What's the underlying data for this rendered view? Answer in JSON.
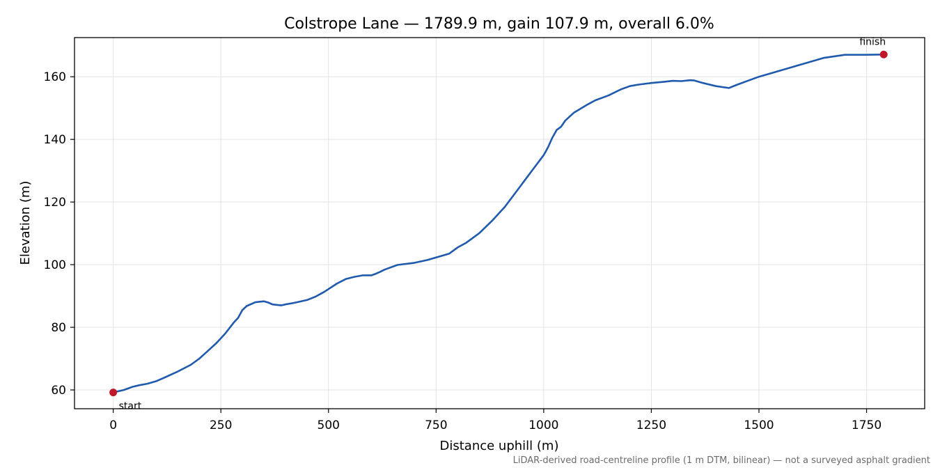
{
  "chart_data": {
    "type": "line",
    "title": "Colstrope Lane — 1789.9 m, gain 107.9 m, overall 6.0%",
    "xlabel": "Distance uphill (m)",
    "ylabel": "Elevation (m)",
    "xlim": [
      -90,
      1885
    ],
    "ylim": [
      54,
      172.5
    ],
    "xticks": [
      0,
      250,
      500,
      750,
      1000,
      1250,
      1500,
      1750
    ],
    "yticks": [
      60,
      80,
      100,
      120,
      140,
      160
    ],
    "grid": true,
    "line_color": "#1f5aad",
    "marker_color": "#c0182b",
    "series": [
      {
        "x": [
          0,
          25,
          45,
          60,
          80,
          100,
          120,
          150,
          180,
          200,
          220,
          240,
          260,
          280,
          290,
          300,
          310,
          330,
          350,
          360,
          370,
          390,
          400,
          420,
          450,
          470,
          490,
          520,
          540,
          560,
          580,
          600,
          610,
          620,
          630,
          660,
          700,
          730,
          750,
          780,
          800,
          820,
          850,
          880,
          910,
          940,
          970,
          1000,
          1010,
          1020,
          1030,
          1040,
          1050,
          1070,
          1100,
          1120,
          1150,
          1180,
          1200,
          1220,
          1250,
          1280,
          1300,
          1320,
          1340,
          1350,
          1370,
          1400,
          1430,
          1450,
          1480,
          1500,
          1550,
          1600,
          1650,
          1700,
          1750,
          1789.9
        ],
        "y": [
          59.2,
          60.0,
          61.0,
          61.5,
          62.0,
          62.8,
          64.0,
          65.9,
          68.0,
          70.0,
          72.5,
          75.0,
          78.0,
          81.5,
          83.0,
          85.5,
          86.8,
          88.0,
          88.3,
          87.9,
          87.3,
          87.0,
          87.3,
          87.8,
          88.7,
          89.8,
          91.3,
          94.0,
          95.4,
          96.1,
          96.6,
          96.6,
          97.1,
          97.7,
          98.4,
          99.9,
          100.6,
          101.5,
          102.3,
          103.5,
          105.5,
          107.0,
          110.0,
          114.0,
          118.5,
          124.0,
          129.5,
          135.0,
          137.5,
          140.5,
          143.0,
          144.0,
          146.0,
          148.5,
          151.0,
          152.5,
          154.0,
          156.0,
          157.0,
          157.5,
          158.0,
          158.4,
          158.7,
          158.6,
          158.9,
          158.8,
          158.0,
          157.0,
          156.4,
          157.5,
          159.0,
          160.0,
          162.0,
          164.0,
          166.0,
          167.0,
          167.0,
          167.1
        ]
      }
    ],
    "annotations": [
      {
        "label": "start",
        "x": 0,
        "y": 59.2
      },
      {
        "label": "finish",
        "x": 1789.9,
        "y": 167.1
      }
    ],
    "footnote": "LiDAR-derived road-centreline profile (1 m DTM, bilinear) — not a surveyed asphalt gradient"
  }
}
